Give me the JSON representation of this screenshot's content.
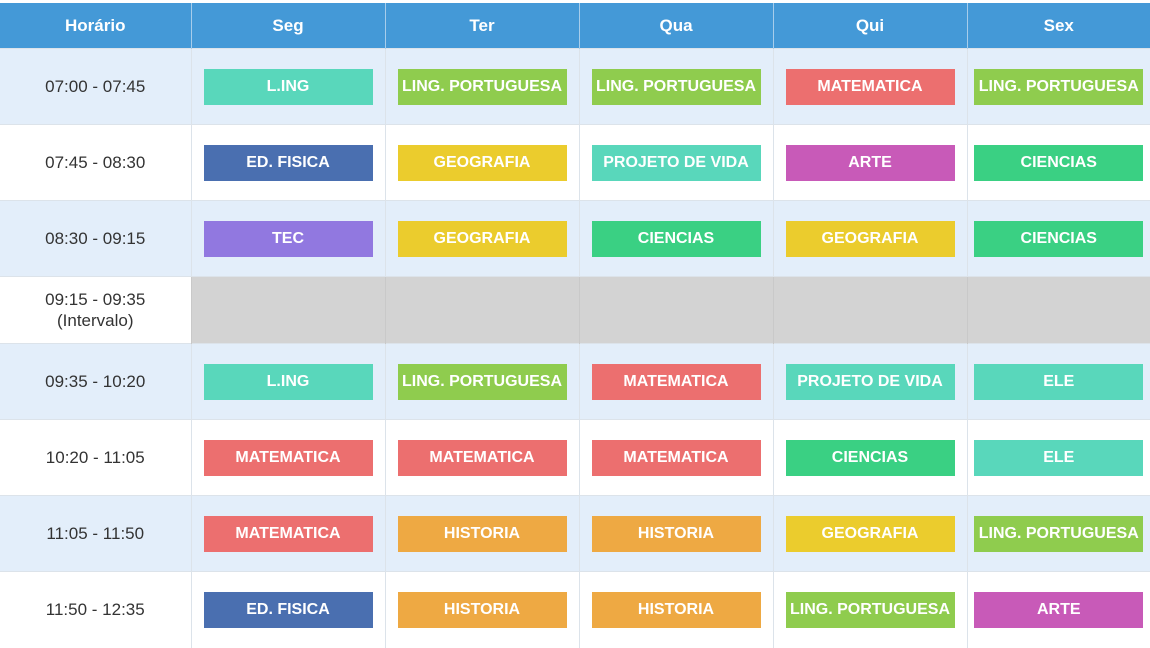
{
  "headers": [
    "Horário",
    "Seg",
    "Ter",
    "Qua",
    "Qui",
    "Sex"
  ],
  "subjects": {
    "L.ING": "#59d7bb",
    "LING. PORTUGUESA": "#8fcc4e",
    "MATEMATICA": "#ec6f6f",
    "ED. FISICA": "#4a6fb0",
    "GEOGRAFIA": "#ebcc2d",
    "PROJETO DE VIDA": "#59d7bb",
    "ARTE": "#c85ab8",
    "CIENCIAS": "#3ad083",
    "TEC": "#9178e0",
    "ELE": "#59d7bb",
    "HISTORIA": "#eea943"
  },
  "rows": [
    {
      "time": "07:00 - 07:45",
      "classes": [
        "L.ING",
        "LING. PORTUGUESA",
        "LING. PORTUGUESA",
        "MATEMATICA",
        "LING. PORTUGUESA"
      ]
    },
    {
      "time": "07:45 - 08:30",
      "classes": [
        "ED. FISICA",
        "GEOGRAFIA",
        "PROJETO DE VIDA",
        "ARTE",
        "CIENCIAS"
      ]
    },
    {
      "time": "08:30 - 09:15",
      "classes": [
        "TEC",
        "GEOGRAFIA",
        "CIENCIAS",
        "GEOGRAFIA",
        "CIENCIAS"
      ]
    },
    {
      "time": "09:15 - 09:35",
      "note": "(Intervalo)",
      "break": true
    },
    {
      "time": "09:35 - 10:20",
      "classes": [
        "L.ING",
        "LING. PORTUGUESA",
        "MATEMATICA",
        "PROJETO DE VIDA",
        "ELE"
      ]
    },
    {
      "time": "10:20 - 11:05",
      "classes": [
        "MATEMATICA",
        "MATEMATICA",
        "MATEMATICA",
        "CIENCIAS",
        "ELE"
      ]
    },
    {
      "time": "11:05 - 11:50",
      "classes": [
        "MATEMATICA",
        "HISTORIA",
        "HISTORIA",
        "GEOGRAFIA",
        "LING. PORTUGUESA"
      ]
    },
    {
      "time": "11:50 - 12:35",
      "classes": [
        "ED. FISICA",
        "HISTORIA",
        "HISTORIA",
        "LING. PORTUGUESA",
        "ARTE"
      ]
    }
  ]
}
